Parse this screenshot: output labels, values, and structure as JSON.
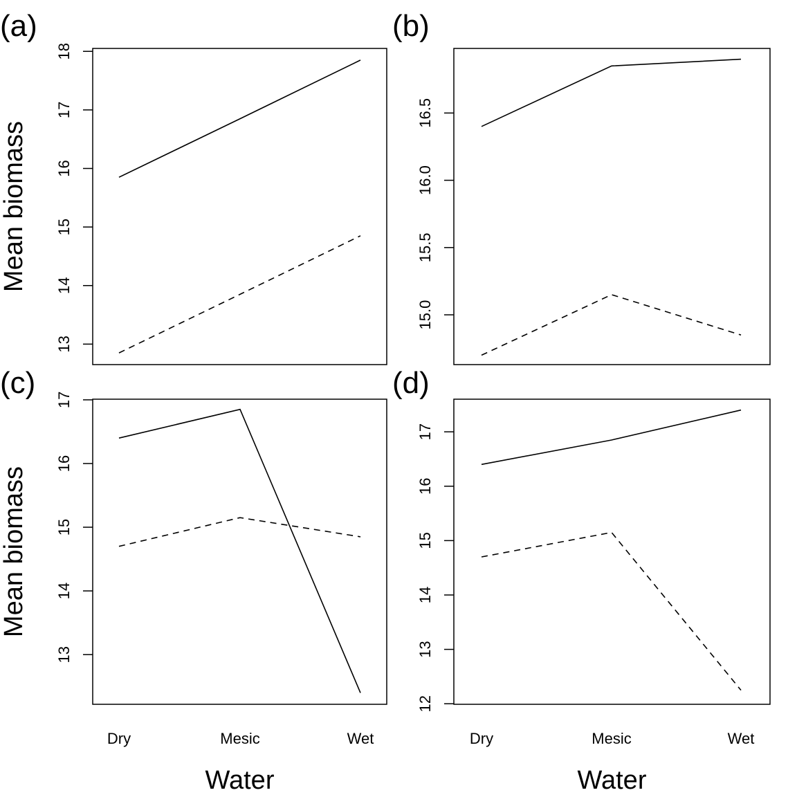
{
  "x_axis": {
    "categories": [
      "Dry",
      "Mesic",
      "Wet"
    ],
    "title": "Water"
  },
  "y_axis": {
    "title": "Mean biomass"
  },
  "line_styles": {
    "solid": "#000000",
    "dashed": "#000000"
  },
  "chart_data": [
    {
      "type": "line",
      "panel_label": "(a)",
      "categories": [
        "Dry",
        "Mesic",
        "Wet"
      ],
      "ylim": [
        12.65,
        18.05
      ],
      "yticks": [
        13,
        14,
        15,
        16,
        17,
        18
      ],
      "ytick_labels": [
        "13",
        "14",
        "15",
        "16",
        "17",
        "18"
      ],
      "ylabel": "Mean biomass",
      "xlabel": "",
      "series": [
        {
          "style": "solid",
          "values": [
            15.85,
            16.85,
            17.85
          ]
        },
        {
          "style": "dashed",
          "values": [
            12.85,
            13.85,
            14.85
          ]
        }
      ]
    },
    {
      "type": "line",
      "panel_label": "(b)",
      "categories": [
        "Dry",
        "Mesic",
        "Wet"
      ],
      "ylim": [
        14.63,
        16.98
      ],
      "yticks": [
        15.0,
        15.5,
        16.0,
        16.5
      ],
      "ytick_labels": [
        "15.0",
        "15.5",
        "16.0",
        "16.5"
      ],
      "ylabel": "",
      "xlabel": "",
      "series": [
        {
          "style": "solid",
          "values": [
            16.4,
            16.85,
            16.9
          ]
        },
        {
          "style": "dashed",
          "values": [
            14.7,
            15.15,
            14.85
          ]
        }
      ]
    },
    {
      "type": "line",
      "panel_label": "(c)",
      "categories": [
        "Dry",
        "Mesic",
        "Wet"
      ],
      "ylim": [
        12.22,
        17.01
      ],
      "yticks": [
        13,
        14,
        15,
        16,
        17
      ],
      "ytick_labels": [
        "13",
        "14",
        "15",
        "16",
        "17"
      ],
      "ylabel": "Mean biomass",
      "xlabel": "Water",
      "series": [
        {
          "style": "solid",
          "values": [
            16.4,
            16.85,
            12.4
          ]
        },
        {
          "style": "dashed",
          "values": [
            14.7,
            15.15,
            14.85
          ]
        }
      ]
    },
    {
      "type": "line",
      "panel_label": "(d)",
      "categories": [
        "Dry",
        "Mesic",
        "Wet"
      ],
      "ylim": [
        11.99,
        17.6
      ],
      "yticks": [
        12,
        13,
        14,
        15,
        16,
        17
      ],
      "ytick_labels": [
        "12",
        "13",
        "14",
        "15",
        "16",
        "17"
      ],
      "ylabel": "",
      "xlabel": "Water",
      "series": [
        {
          "style": "solid",
          "values": [
            16.4,
            16.85,
            17.4
          ]
        },
        {
          "style": "dashed",
          "values": [
            14.7,
            15.15,
            12.25
          ]
        }
      ]
    }
  ]
}
